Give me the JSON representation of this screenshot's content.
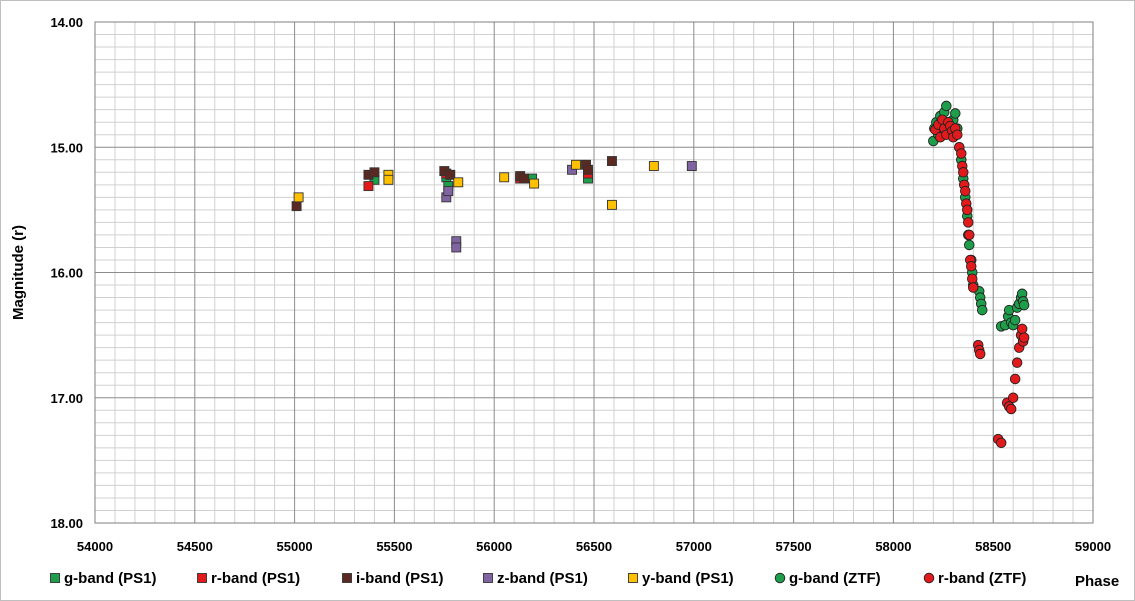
{
  "chart_data": {
    "type": "scatter",
    "title": "",
    "xlabel": "Phase",
    "ylabel": "Magnitude (r)",
    "xlim": [
      54000,
      59000
    ],
    "ylim": [
      18.0,
      14.0
    ],
    "y_inverted": true,
    "x_ticks": [
      "54000",
      "54500",
      "55000",
      "55500",
      "56000",
      "56500",
      "57000",
      "57500",
      "58000",
      "58500",
      "59000"
    ],
    "y_ticks": [
      "14.00",
      "15.00",
      "16.00",
      "17.00",
      "18.00"
    ],
    "grid": true,
    "legend_position": "bottom",
    "series": [
      {
        "name": "g-band (PS1)",
        "marker": "square",
        "color": "#1e9e4a",
        "points": [
          [
            55400,
            15.26
          ],
          [
            55760,
            15.24
          ],
          [
            55770,
            15.31
          ],
          [
            56190,
            15.25
          ],
          [
            56470,
            15.25
          ]
        ]
      },
      {
        "name": "r-band (PS1)",
        "marker": "square",
        "color": "#e31a1c",
        "points": [
          [
            55370,
            15.31
          ],
          [
            55760,
            15.21
          ],
          [
            56130,
            15.25
          ],
          [
            56470,
            15.21
          ]
        ]
      },
      {
        "name": "i-band (PS1)",
        "marker": "square",
        "color": "#5a2a22",
        "points": [
          [
            55010,
            15.47
          ],
          [
            55370,
            15.22
          ],
          [
            55400,
            15.2
          ],
          [
            55750,
            15.19
          ],
          [
            55780,
            15.22
          ],
          [
            56130,
            15.23
          ],
          [
            56150,
            15.25
          ],
          [
            56460,
            15.14
          ],
          [
            56470,
            15.18
          ],
          [
            56590,
            15.11
          ]
        ]
      },
      {
        "name": "z-band (PS1)",
        "marker": "square",
        "color": "#8064a2",
        "points": [
          [
            55760,
            15.4
          ],
          [
            55770,
            15.35
          ],
          [
            55810,
            15.75
          ],
          [
            55810,
            15.8
          ],
          [
            56390,
            15.18
          ],
          [
            56990,
            15.15
          ]
        ]
      },
      {
        "name": "y-band (PS1)",
        "marker": "square",
        "color": "#ffc000",
        "points": [
          [
            55020,
            15.4
          ],
          [
            55470,
            15.22
          ],
          [
            55470,
            15.26
          ],
          [
            55820,
            15.28
          ],
          [
            56050,
            15.24
          ],
          [
            56200,
            15.29
          ],
          [
            56410,
            15.14
          ],
          [
            56590,
            15.46
          ],
          [
            56800,
            15.15
          ]
        ]
      },
      {
        "name": "g-band (ZTF)",
        "marker": "circle",
        "color": "#1e9e4a",
        "points": [
          [
            58200,
            14.95
          ],
          [
            58205,
            14.85
          ],
          [
            58215,
            14.8
          ],
          [
            58225,
            14.9
          ],
          [
            58235,
            14.75
          ],
          [
            58245,
            14.84
          ],
          [
            58255,
            14.72
          ],
          [
            58265,
            14.67
          ],
          [
            58275,
            14.8
          ],
          [
            58285,
            14.88
          ],
          [
            58300,
            14.78
          ],
          [
            58310,
            14.73
          ],
          [
            58320,
            14.85
          ],
          [
            58330,
            15.0
          ],
          [
            58340,
            15.1
          ],
          [
            58350,
            15.25
          ],
          [
            58360,
            15.4
          ],
          [
            58370,
            15.55
          ],
          [
            58375,
            15.7
          ],
          [
            58380,
            15.78
          ],
          [
            58390,
            15.9
          ],
          [
            58395,
            16.0
          ],
          [
            58400,
            16.1
          ],
          [
            58430,
            16.15
          ],
          [
            58435,
            16.2
          ],
          [
            58440,
            16.25
          ],
          [
            58445,
            16.3
          ],
          [
            58540,
            16.43
          ],
          [
            58560,
            16.42
          ],
          [
            58575,
            16.35
          ],
          [
            58580,
            16.3
          ],
          [
            58590,
            16.4
          ],
          [
            58600,
            16.42
          ],
          [
            58610,
            16.38
          ],
          [
            58620,
            16.28
          ],
          [
            58630,
            16.25
          ],
          [
            58640,
            16.2
          ],
          [
            58645,
            16.17
          ],
          [
            58650,
            16.23
          ],
          [
            58655,
            16.26
          ]
        ]
      },
      {
        "name": "r-band (ZTF)",
        "marker": "circle",
        "color": "#e31a1c",
        "points": [
          [
            58210,
            14.86
          ],
          [
            58225,
            14.82
          ],
          [
            58235,
            14.92
          ],
          [
            58245,
            14.78
          ],
          [
            58255,
            14.85
          ],
          [
            58265,
            14.9
          ],
          [
            58275,
            14.8
          ],
          [
            58285,
            14.83
          ],
          [
            58295,
            14.87
          ],
          [
            58300,
            14.92
          ],
          [
            58310,
            14.85
          ],
          [
            58320,
            14.9
          ],
          [
            58330,
            15.0
          ],
          [
            58340,
            15.05
          ],
          [
            58345,
            15.15
          ],
          [
            58350,
            15.2
          ],
          [
            58355,
            15.3
          ],
          [
            58360,
            15.35
          ],
          [
            58365,
            15.45
          ],
          [
            58370,
            15.5
          ],
          [
            58375,
            15.6
          ],
          [
            58380,
            15.7
          ],
          [
            58385,
            15.9
          ],
          [
            58390,
            15.95
          ],
          [
            58395,
            16.05
          ],
          [
            58400,
            16.12
          ],
          [
            58425,
            16.58
          ],
          [
            58430,
            16.62
          ],
          [
            58435,
            16.65
          ],
          [
            58525,
            17.33
          ],
          [
            58540,
            17.36
          ],
          [
            58570,
            17.04
          ],
          [
            58580,
            17.07
          ],
          [
            58590,
            17.09
          ],
          [
            58600,
            17.0
          ],
          [
            58610,
            16.85
          ],
          [
            58620,
            16.72
          ],
          [
            58630,
            16.6
          ],
          [
            58640,
            16.5
          ],
          [
            58645,
            16.45
          ],
          [
            58650,
            16.55
          ],
          [
            58655,
            16.52
          ]
        ]
      }
    ]
  }
}
